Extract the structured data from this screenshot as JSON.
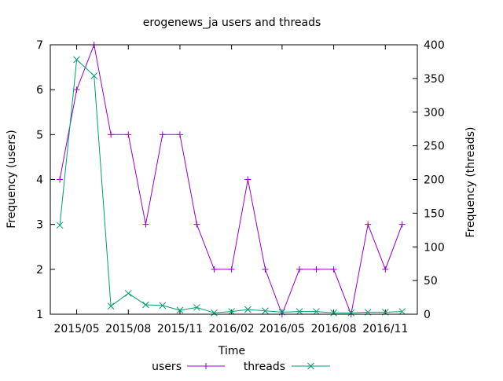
{
  "chart_data": {
    "type": "line",
    "title": "erogenews_ja users and threads",
    "xlabel": "Time",
    "ylabel": "Frequency (users)",
    "y2label": "Frequency (threads)",
    "ylim": [
      1,
      7
    ],
    "y2lim": [
      0,
      400
    ],
    "xlim": [
      "2015-03-15",
      "2016-12-28"
    ],
    "x_ticks": [
      {
        "date": "2015-05-01",
        "label": "2015/05"
      },
      {
        "date": "2015-08-01",
        "label": "2015/08"
      },
      {
        "date": "2015-11-01",
        "label": "2015/11"
      },
      {
        "date": "2016-02-01",
        "label": "2016/02"
      },
      {
        "date": "2016-05-01",
        "label": "2016/05"
      },
      {
        "date": "2016-08-01",
        "label": "2016/08"
      },
      {
        "date": "2016-11-01",
        "label": "2016/11"
      }
    ],
    "y_ticks": [
      "1",
      "2",
      "3",
      "4",
      "5",
      "6",
      "7"
    ],
    "y2_ticks": [
      "0",
      "50",
      "100",
      "150",
      "200",
      "250",
      "300",
      "350",
      "400"
    ],
    "x": [
      "2015-04",
      "2015-05",
      "2015-06",
      "2015-07",
      "2015-08",
      "2015-09",
      "2015-10",
      "2015-11",
      "2015-12",
      "2016-01",
      "2016-02",
      "2016-03",
      "2016-04",
      "2016-05",
      "2016-06",
      "2016-07",
      "2016-08",
      "2016-09",
      "2016-10",
      "2016-11",
      "2016-12"
    ],
    "series": [
      {
        "name": "users",
        "axis": "left",
        "color": "#9400d3",
        "marker": "+",
        "values": [
          4,
          6,
          7,
          5,
          5,
          3,
          5,
          5,
          3,
          2,
          2,
          4,
          2,
          1,
          2,
          2,
          2,
          1,
          3,
          2,
          3
        ]
      },
      {
        "name": "threads",
        "axis": "right",
        "color": "#009e73",
        "marker": "x",
        "values": [
          132,
          378,
          354,
          12,
          31,
          14,
          13,
          6,
          10,
          2,
          4,
          7,
          5,
          3,
          4,
          4,
          2,
          2,
          3,
          3,
          4
        ]
      }
    ],
    "grid": false,
    "legend": "bottom"
  }
}
